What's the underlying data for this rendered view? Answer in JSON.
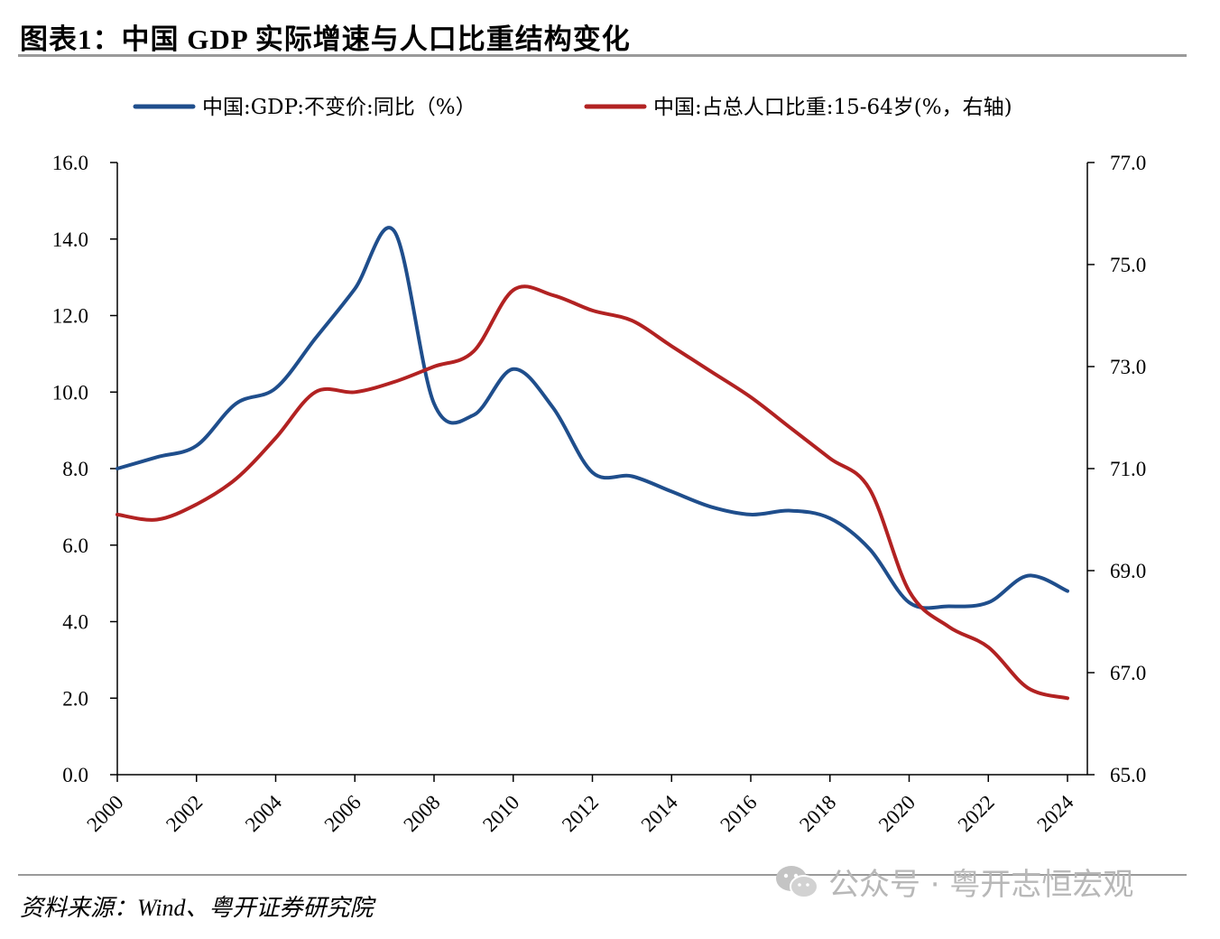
{
  "header": {
    "title": "图表1：中国 GDP 实际增速与人口比重结构变化"
  },
  "footer": {
    "source": "资料来源：Wind、粤开证券研究院",
    "watermark": "公众号 · 粤开志恒宏观",
    "watermark_icon": "wechat-icon"
  },
  "chart_data": {
    "type": "line",
    "title": "",
    "legend_position": "top",
    "grid": false,
    "x": [
      2000,
      2001,
      2002,
      2003,
      2004,
      2005,
      2006,
      2007,
      2008,
      2009,
      2010,
      2011,
      2012,
      2013,
      2014,
      2015,
      2016,
      2017,
      2018,
      2019,
      2020,
      2021,
      2022,
      2023,
      2024
    ],
    "x_tick_labels": [
      "2000",
      "2002",
      "2004",
      "2006",
      "2008",
      "2010",
      "2012",
      "2014",
      "2016",
      "2018",
      "2020",
      "2022",
      "2024"
    ],
    "y_left": {
      "range": [
        0,
        16
      ],
      "tick_labels": [
        "0.0",
        "2.0",
        "4.0",
        "6.0",
        "8.0",
        "10.0",
        "12.0",
        "14.0",
        "16.0"
      ]
    },
    "y_right": {
      "range": [
        65,
        77
      ],
      "tick_labels": [
        "65.0",
        "67.0",
        "69.0",
        "71.0",
        "73.0",
        "75.0",
        "77.0"
      ]
    },
    "series": [
      {
        "name": "中国:GDP:不变价:同比（%）",
        "axis": "left",
        "color": "#1f4e8c",
        "values": [
          8.0,
          8.3,
          8.6,
          9.7,
          10.1,
          11.4,
          12.7,
          14.2,
          9.7,
          9.4,
          10.6,
          9.6,
          7.9,
          7.8,
          7.4,
          7.0,
          6.8,
          6.9,
          6.7,
          5.9,
          4.5,
          4.4,
          4.5,
          5.2,
          4.8
        ]
      },
      {
        "name": "中国:占总人口比重:15-64岁(%，右轴)",
        "axis": "right",
        "color": "#b22222",
        "values": [
          70.1,
          70.0,
          70.3,
          70.8,
          71.6,
          72.5,
          72.5,
          72.7,
          73.0,
          73.3,
          74.5,
          74.4,
          74.1,
          73.9,
          73.4,
          72.9,
          72.4,
          71.8,
          71.2,
          70.6,
          68.6,
          67.9,
          67.5,
          66.7,
          66.5
        ]
      }
    ]
  }
}
